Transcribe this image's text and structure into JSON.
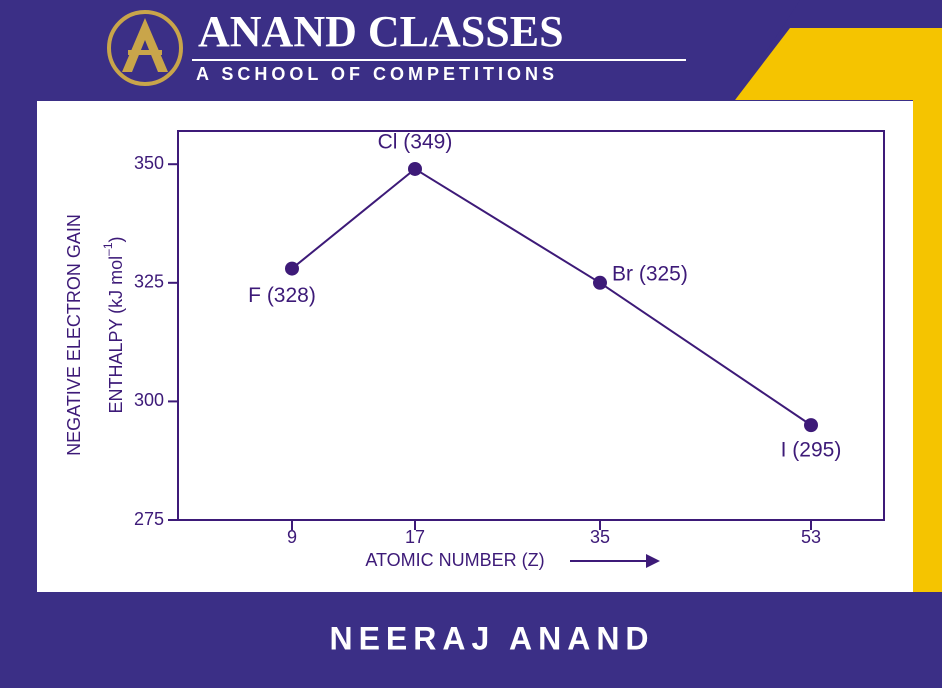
{
  "page": {
    "brand": "ANAND CLASSES",
    "tagline": "A SCHOOL OF  COMPETITIONS",
    "footer": "NEERAJ ANAND"
  },
  "chart_data": {
    "type": "line",
    "x_label": "ATOMIC NUMBER (Z)",
    "y_label": [
      "NEGATIVE ELECTRON GAIN",
      "ENTHALPY  (kJ mol",
      "–1",
      ")"
    ],
    "categories": [
      "9",
      "17",
      "35",
      "53"
    ],
    "values": [
      328,
      349,
      325,
      295
    ],
    "value_labels": [
      "F (328)",
      "Cl (349)",
      "Br (325)",
      "I (295)"
    ],
    "color": "#3d1a78",
    "ylim": [
      275,
      357
    ],
    "yticks": [
      275,
      300,
      325,
      350
    ]
  }
}
